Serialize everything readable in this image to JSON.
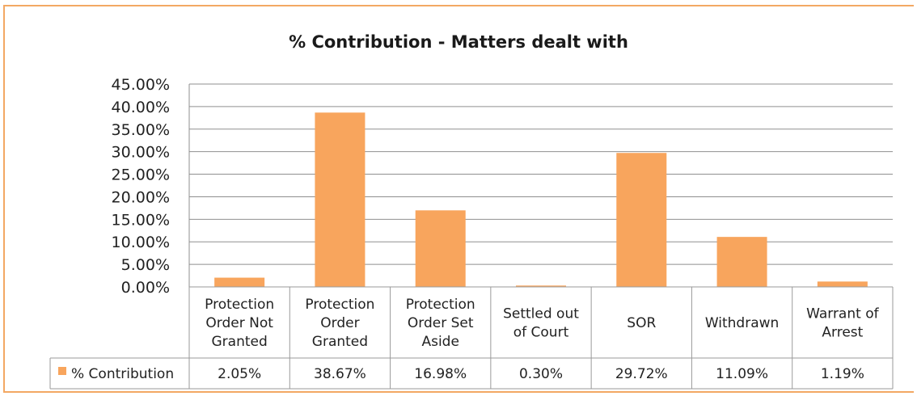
{
  "chart_data": {
    "type": "bar",
    "title": "% Contribution - Matters dealt with",
    "categories": [
      [
        "Protection",
        "Order  Not",
        "Granted"
      ],
      [
        "Protection",
        "Order",
        "Granted"
      ],
      [
        "Protection",
        "Order Set",
        "Aside"
      ],
      [
        "Settled out",
        "of Court"
      ],
      [
        "SOR"
      ],
      [
        "Withdrawn"
      ],
      [
        "Warrant of",
        "Arrest"
      ]
    ],
    "series": [
      {
        "name": "% Contribution",
        "values": [
          2.05,
          38.67,
          16.98,
          0.3,
          29.72,
          11.09,
          1.19
        ],
        "labels": [
          "2.05%",
          "38.67%",
          "16.98%",
          "0.30%",
          "29.72%",
          "11.09%",
          "1.19%"
        ],
        "color": "#f8a55d"
      }
    ],
    "ylim": [
      0,
      45
    ],
    "yticks": [
      "0.00%",
      "5.00%",
      "10.00%",
      "15.00%",
      "20.00%",
      "25.00%",
      "30.00%",
      "35.00%",
      "40.00%",
      "45.00%"
    ],
    "grid": true,
    "data_table": true
  }
}
